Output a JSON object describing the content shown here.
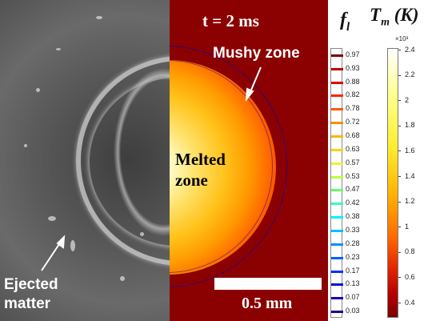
{
  "labels": {
    "time": "t = 2 ms",
    "mushy_zone": "Mushy zone",
    "melted_line1": "Melted",
    "melted_line2": "zone",
    "ejected_line1": "Ejected",
    "ejected_line2": "matter",
    "scale_bar": "0.5 mm"
  },
  "liquid_fraction_colorbar": {
    "symbol": "f",
    "subscript": "l",
    "ticks": [
      "0.97",
      "0.93",
      "0.88",
      "0.82",
      "0.78",
      "0.72",
      "0.68",
      "0.63",
      "0.57",
      "0.53",
      "0.47",
      "0.42",
      "0.38",
      "0.33",
      "0.28",
      "0.23",
      "0.17",
      "0.13",
      "0.07",
      "0.03"
    ],
    "colors": [
      "#7a0000",
      "#c40000",
      "#e20000",
      "#ff2400",
      "#ff5a00",
      "#ff8c00",
      "#ffb400",
      "#ffd400",
      "#f0ef33",
      "#b9ff3a",
      "#66ff66",
      "#33ffb3",
      "#00f0ff",
      "#00c0ff",
      "#0090ff",
      "#0060ff",
      "#0030ff",
      "#0a0ad9",
      "#1a00b3",
      "#220088"
    ]
  },
  "temperature_colorbar": {
    "symbol": "T",
    "subscript": "m",
    "unit": "(K)",
    "exponent": "×10³",
    "ticks": [
      "2.4",
      "2.2",
      "2",
      "1.8",
      "1.6",
      "1.4",
      "1.2",
      "1",
      "0.8",
      "0.6",
      "0.4"
    ]
  }
}
